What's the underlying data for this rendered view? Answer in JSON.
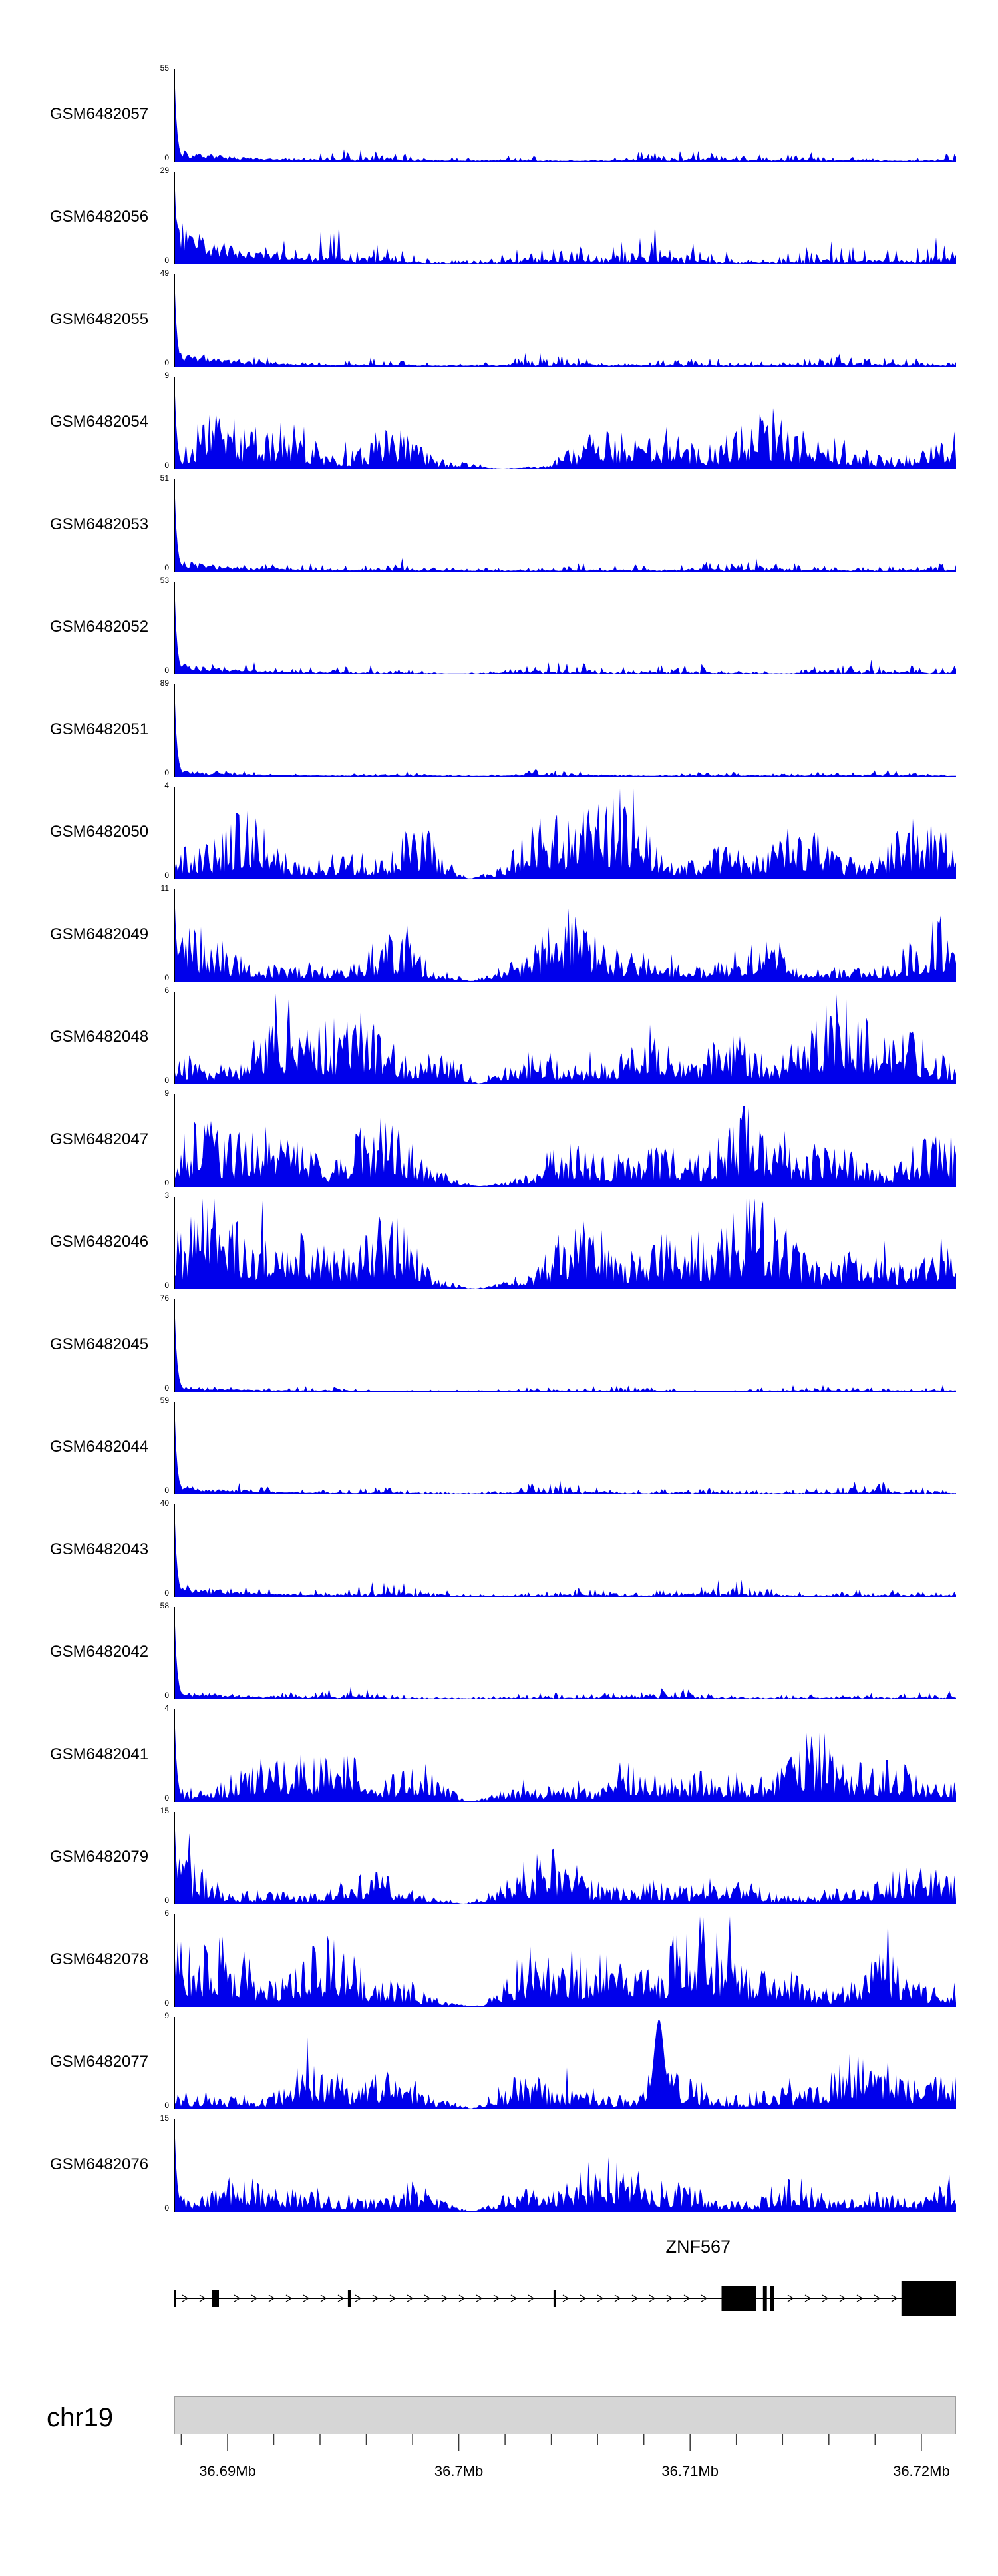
{
  "chart_data": {
    "type": "area",
    "title": "",
    "description": "Genome-browser read-coverage tracks (blue filled area plots) for 21 GEO samples over chr19 around the ZNF567 gene, with gene model and genomic axis below.",
    "region": {
      "chromosome": "chr19",
      "start_mb": 36.6877,
      "end_mb": 36.7215
    },
    "tracks": [
      {
        "label": "GSM6482057",
        "ymax": 55,
        "ymin": 0,
        "profile": "left_peak",
        "noise": 0.05,
        "shoulder": 0.1,
        "seed": 11
      },
      {
        "label": "GSM6482056",
        "ymax": 29,
        "ymin": 0,
        "profile": "left_peak",
        "noise": 0.16,
        "shoulder": 0.38,
        "seed": 12
      },
      {
        "label": "GSM6482055",
        "ymax": 49,
        "ymin": 0,
        "profile": "left_peak",
        "noise": 0.06,
        "shoulder": 0.12,
        "seed": 13
      },
      {
        "label": "GSM6482054",
        "ymax": 9,
        "ymin": 0,
        "profile": "dense",
        "left_spike": true,
        "amp": 0.55,
        "dip": [
          0.28,
          0.56
        ],
        "seed": 14
      },
      {
        "label": "GSM6482053",
        "ymax": 51,
        "ymin": 0,
        "profile": "left_peak",
        "noise": 0.06,
        "shoulder": 0.1,
        "seed": 15
      },
      {
        "label": "GSM6482052",
        "ymax": 53,
        "ymin": 0,
        "profile": "left_peak",
        "noise": 0.06,
        "shoulder": 0.1,
        "seed": 16
      },
      {
        "label": "GSM6482051",
        "ymax": 89,
        "ymin": 0,
        "profile": "left_peak",
        "noise": 0.03,
        "shoulder": 0.05,
        "seed": 17
      },
      {
        "label": "GSM6482050",
        "ymax": 4,
        "ymin": 0,
        "profile": "dense",
        "amp": 0.85,
        "dip": [
          0.3,
          0.46
        ],
        "seed": 18
      },
      {
        "label": "GSM6482049",
        "ymax": 11,
        "ymin": 0,
        "profile": "dense",
        "left_spike": true,
        "amp": 0.6,
        "dip": [
          0.3,
          0.46
        ],
        "seed": 19
      },
      {
        "label": "GSM6482048",
        "ymax": 6,
        "ymin": 0,
        "profile": "dense",
        "amp": 0.8,
        "dip": [
          0.32,
          0.46
        ],
        "seed": 20
      },
      {
        "label": "GSM6482047",
        "ymax": 9,
        "ymin": 0,
        "profile": "dense",
        "amp": 0.7,
        "dip": [
          0.3,
          0.48
        ],
        "seed": 21
      },
      {
        "label": "GSM6482046",
        "ymax": 3,
        "ymin": 0,
        "profile": "dense",
        "amp": 0.85,
        "dip": [
          0.3,
          0.47
        ],
        "seed": 22
      },
      {
        "label": "GSM6482045",
        "ymax": 76,
        "ymin": 0,
        "profile": "left_peak",
        "noise": 0.03,
        "shoulder": 0.05,
        "seed": 23
      },
      {
        "label": "GSM6482044",
        "ymax": 59,
        "ymin": 0,
        "profile": "left_peak",
        "noise": 0.05,
        "shoulder": 0.08,
        "seed": 24
      },
      {
        "label": "GSM6482043",
        "ymax": 40,
        "ymin": 0,
        "profile": "left_peak",
        "noise": 0.07,
        "shoulder": 0.12,
        "seed": 25
      },
      {
        "label": "GSM6482042",
        "ymax": 58,
        "ymin": 0,
        "profile": "left_peak",
        "noise": 0.05,
        "shoulder": 0.08,
        "seed": 26
      },
      {
        "label": "GSM6482041",
        "ymax": 4,
        "ymin": 0,
        "profile": "dense",
        "left_spike": true,
        "amp": 0.6,
        "dip": [
          0.3,
          0.46
        ],
        "seed": 27
      },
      {
        "label": "GSM6482079",
        "ymax": 15,
        "ymin": 0,
        "profile": "dense",
        "left_spike": true,
        "amp": 0.45,
        "dip": [
          0.3,
          0.44
        ],
        "seed": 28
      },
      {
        "label": "GSM6482078",
        "ymax": 6,
        "ymin": 0,
        "profile": "dense",
        "amp": 0.8,
        "dip": [
          0.3,
          0.46
        ],
        "seed": 29
      },
      {
        "label": "GSM6482077",
        "ymax": 9,
        "ymin": 0,
        "profile": "dense",
        "amp": 0.55,
        "spike_at": 0.62,
        "dip": [
          0.3,
          0.46
        ],
        "seed": 30
      },
      {
        "label": "GSM6482076",
        "ymax": 15,
        "ymin": 0,
        "profile": "dense",
        "left_spike": true,
        "amp": 0.5,
        "dip": [
          0.3,
          0.46
        ],
        "seed": 31
      }
    ],
    "gene_track": {
      "gene": "ZNF567",
      "strand": "right",
      "label_x_frac": 0.67,
      "exons": [
        {
          "x": 0.0,
          "w": 0.0025,
          "h": "small"
        },
        {
          "x": 0.048,
          "w": 0.009,
          "h": "small"
        },
        {
          "x": 0.222,
          "w": 0.0035,
          "h": "small"
        },
        {
          "x": 0.485,
          "w": 0.0035,
          "h": "small"
        },
        {
          "x": 0.7,
          "w": 0.044,
          "h": "medium"
        },
        {
          "x": 0.753,
          "w": 0.005,
          "h": "medium"
        },
        {
          "x": 0.762,
          "w": 0.005,
          "h": "medium"
        },
        {
          "x": 0.93,
          "w": 0.07,
          "h": "tall"
        }
      ]
    },
    "axis": {
      "minor_step_mb": 0.002,
      "major_ticks": [
        {
          "mb": 36.69,
          "label": "36.69Mb"
        },
        {
          "mb": 36.7,
          "label": "36.7Mb"
        },
        {
          "mb": 36.71,
          "label": "36.71Mb"
        },
        {
          "mb": 36.72,
          "label": "36.72Mb"
        }
      ]
    },
    "colors": {
      "coverage_fill": "#0000EB",
      "gene": "#000000",
      "axis_bar_fill": "#d6d6d6",
      "axis_bar_stroke": "#9e9e9e",
      "tick": "#3a3a3a",
      "text": "#000000"
    }
  }
}
